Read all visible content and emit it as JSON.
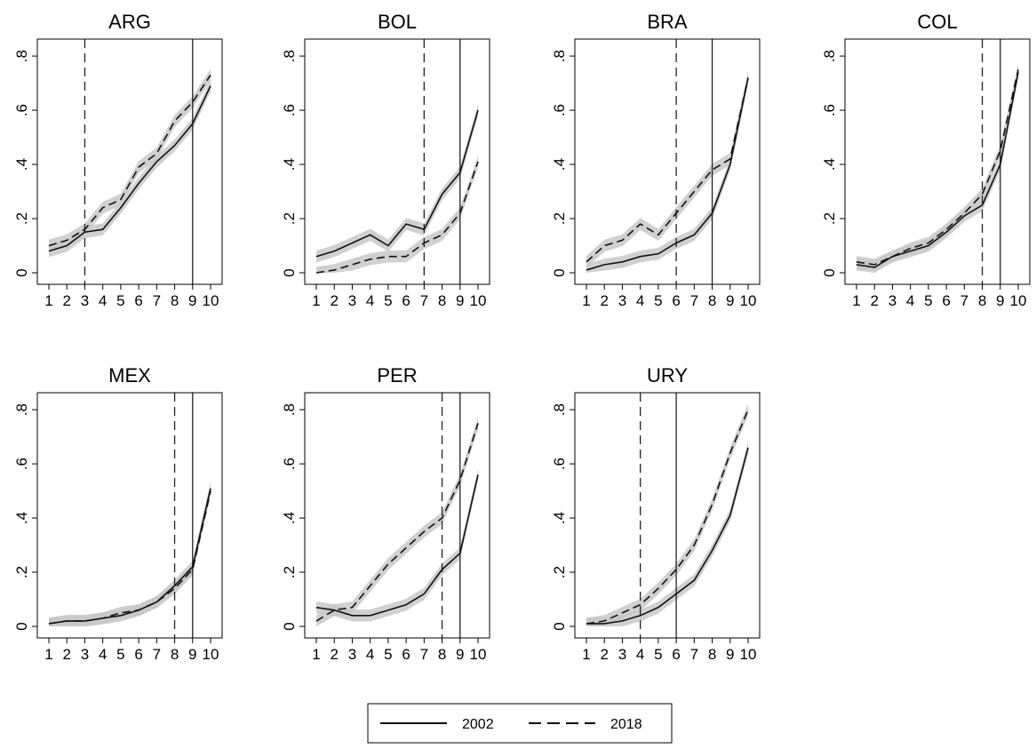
{
  "chart_data": {
    "type": "line",
    "layout": "small-multiples",
    "x_ticks": [
      "1",
      "2",
      "3",
      "4",
      "5",
      "6",
      "7",
      "8",
      "9",
      "10"
    ],
    "y_ticks": [
      {
        "value": 0,
        "label": "0"
      },
      {
        "value": 0.2,
        "label": ".2"
      },
      {
        "value": 0.4,
        "label": ".4"
      },
      {
        "value": 0.6,
        "label": ".6"
      },
      {
        "value": 0.8,
        "label": ".8"
      }
    ],
    "xlim": [
      1,
      10
    ],
    "ylim": [
      0,
      0.82
    ],
    "grid": false,
    "confidence_band": true,
    "legend": {
      "placement": "bottom-center",
      "entries": [
        {
          "label": "2002",
          "style": "solid"
        },
        {
          "label": "2018",
          "style": "dashed"
        }
      ]
    },
    "colors": {
      "line": "#111111",
      "band": "#c8c8c8",
      "axis": "#000000"
    },
    "panels": [
      {
        "title": "ARG",
        "vline_solid": 9,
        "vline_dashed": 3,
        "series": [
          {
            "name": "2002",
            "values": [
              0.08,
              0.1,
              0.15,
              0.16,
              0.24,
              0.33,
              0.41,
              0.47,
              0.55,
              0.69
            ]
          },
          {
            "name": "2018",
            "values": [
              0.1,
              0.12,
              0.16,
              0.24,
              0.27,
              0.39,
              0.44,
              0.56,
              0.63,
              0.73
            ]
          }
        ]
      },
      {
        "title": "BOL",
        "vline_solid": 9,
        "vline_dashed": 7,
        "series": [
          {
            "name": "2002",
            "values": [
              0.06,
              0.08,
              0.11,
              0.14,
              0.1,
              0.18,
              0.16,
              0.29,
              0.37,
              0.6
            ]
          },
          {
            "name": "2018",
            "values": [
              0.0,
              0.01,
              0.03,
              0.05,
              0.06,
              0.06,
              0.11,
              0.14,
              0.22,
              0.41
            ]
          }
        ]
      },
      {
        "title": "BRA",
        "vline_solid": 8,
        "vline_dashed": 6,
        "series": [
          {
            "name": "2002",
            "values": [
              0.01,
              0.03,
              0.04,
              0.06,
              0.07,
              0.11,
              0.14,
              0.22,
              0.4,
              0.72
            ]
          },
          {
            "name": "2018",
            "values": [
              0.04,
              0.1,
              0.12,
              0.18,
              0.14,
              0.22,
              0.3,
              0.38,
              0.42,
              0.72
            ]
          }
        ]
      },
      {
        "title": "COL",
        "vline_solid": 9,
        "vline_dashed": 8,
        "series": [
          {
            "name": "2002",
            "values": [
              0.03,
              0.02,
              0.06,
              0.08,
              0.1,
              0.15,
              0.21,
              0.25,
              0.4,
              0.74
            ]
          },
          {
            "name": "2018",
            "values": [
              0.04,
              0.03,
              0.06,
              0.09,
              0.11,
              0.16,
              0.22,
              0.29,
              0.45,
              0.75
            ]
          }
        ]
      },
      {
        "title": "MEX",
        "vline_solid": 9,
        "vline_dashed": 8,
        "series": [
          {
            "name": "2002",
            "values": [
              0.01,
              0.02,
              0.02,
              0.03,
              0.04,
              0.06,
              0.09,
              0.15,
              0.22,
              0.51
            ]
          },
          {
            "name": "2018",
            "values": [
              0.01,
              0.02,
              0.02,
              0.03,
              0.05,
              0.06,
              0.09,
              0.14,
              0.21,
              0.5
            ]
          }
        ]
      },
      {
        "title": "PER",
        "vline_solid": 9,
        "vline_dashed": 8,
        "series": [
          {
            "name": "2002",
            "values": [
              0.07,
              0.06,
              0.04,
              0.04,
              0.06,
              0.08,
              0.12,
              0.21,
              0.27,
              0.56
            ]
          },
          {
            "name": "2018",
            "values": [
              0.02,
              0.06,
              0.07,
              0.15,
              0.23,
              0.29,
              0.35,
              0.4,
              0.54,
              0.75
            ]
          }
        ]
      },
      {
        "title": "URY",
        "vline_solid": 6,
        "vline_dashed": 4,
        "series": [
          {
            "name": "2002",
            "values": [
              0.01,
              0.01,
              0.02,
              0.04,
              0.07,
              0.12,
              0.17,
              0.28,
              0.41,
              0.66
            ]
          },
          {
            "name": "2018",
            "values": [
              0.01,
              0.02,
              0.05,
              0.08,
              0.14,
              0.21,
              0.3,
              0.45,
              0.64,
              0.8
            ]
          }
        ]
      }
    ]
  }
}
